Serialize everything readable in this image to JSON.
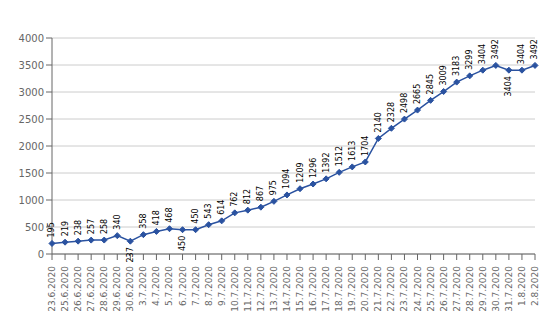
{
  "chart_data": {
    "type": "line",
    "categories": [
      "23.6.2020",
      "25.6.2020",
      "26.6.2020",
      "27.6.2020",
      "28.6.2020",
      "29.6.2020",
      "30.6.2020",
      "3.7.2020",
      "4.7.2020",
      "5.7.2020",
      "6.7.2020",
      "7.7.2020",
      "8.7.2020",
      "9.7.2020",
      "10.7.2020",
      "11.7.2020",
      "12.7.2020",
      "13.7.2020",
      "14.7.2020",
      "15.7.2020",
      "16.7.2020",
      "17.7.2020",
      "18.7.2020",
      "19.7.2020",
      "20.7.2020",
      "21.7.2020",
      "22.7.2020",
      "23.7.2020",
      "24.7.2020",
      "25.7.2020",
      "26.7.2020",
      "27.7.2020",
      "28.7.2020",
      "29.7.2020",
      "30.7.2020",
      "31.7.2020",
      "1.8.2020",
      "2.8.2020"
    ],
    "values": [
      195,
      219,
      238,
      257,
      258,
      340,
      237,
      358,
      418,
      468,
      450,
      450,
      543,
      614,
      762,
      812,
      867,
      975,
      1094,
      1209,
      1296,
      1392,
      1512,
      1613,
      1704,
      2140,
      2328,
      2498,
      2665,
      2845,
      3009,
      3183,
      3299,
      3404,
      3492,
      3404,
      3404,
      3492
    ],
    "color": "#2A52A0",
    "marker": "diamond",
    "ylim": [
      0,
      4000
    ],
    "yticks": [
      0,
      500,
      1000,
      1500,
      2000,
      2500,
      3000,
      3500,
      4000
    ],
    "grid": true,
    "data_labels": true
  }
}
